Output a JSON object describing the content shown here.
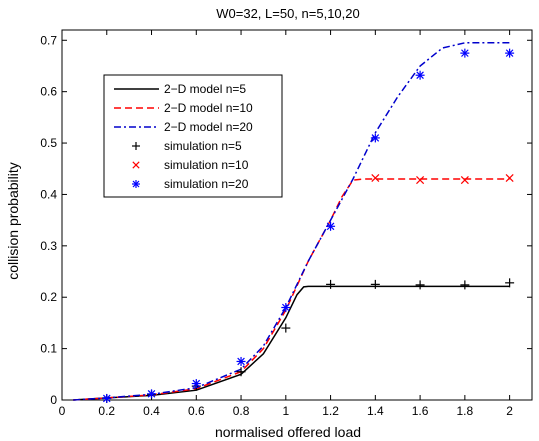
{
  "chart_data": {
    "type": "line",
    "title": "W0=32, L=50, n=5,10,20",
    "xlabel": "normalised offered load",
    "ylabel": "collision probability",
    "xlim": [
      0,
      2.1
    ],
    "ylim": [
      0,
      0.72
    ],
    "xticks": [
      0,
      0.2,
      0.4,
      0.6,
      0.8,
      1,
      1.2,
      1.4,
      1.6,
      1.8,
      2
    ],
    "xtick_labels": [
      "0",
      "0.2",
      "0.4",
      "0.6",
      "0.8",
      "1",
      "1.2",
      "1.4",
      "1.6",
      "1.8",
      "2"
    ],
    "yticks": [
      0,
      0.1,
      0.2,
      0.3,
      0.4,
      0.5,
      0.6,
      0.7
    ],
    "ytick_labels": [
      "0",
      "0.1",
      "0.2",
      "0.3",
      "0.4",
      "0.5",
      "0.6",
      "0.7"
    ],
    "grid": false,
    "legend_position": "top-left",
    "series": [
      {
        "name": "2−D model n=5",
        "kind": "line",
        "style": "solid",
        "color": "#000000",
        "x": [
          0.05,
          0.2,
          0.4,
          0.6,
          0.8,
          0.9,
          1.0,
          1.05,
          1.08,
          1.1,
          1.2,
          1.4,
          1.6,
          1.8,
          2.0
        ],
        "y": [
          0.0,
          0.004,
          0.009,
          0.019,
          0.05,
          0.09,
          0.16,
          0.205,
          0.22,
          0.221,
          0.221,
          0.221,
          0.221,
          0.221,
          0.221
        ]
      },
      {
        "name": "2−D model n=10",
        "kind": "line",
        "style": "dashed",
        "color": "#ff0000",
        "x": [
          0.05,
          0.2,
          0.4,
          0.6,
          0.8,
          0.9,
          1.0,
          1.1,
          1.2,
          1.25,
          1.3,
          1.35,
          1.4,
          1.6,
          1.8,
          2.0
        ],
        "y": [
          0.0,
          0.004,
          0.01,
          0.022,
          0.055,
          0.1,
          0.175,
          0.27,
          0.35,
          0.395,
          0.428,
          0.43,
          0.43,
          0.43,
          0.43,
          0.43
        ]
      },
      {
        "name": "2−D model n=20",
        "kind": "line",
        "style": "dashdot",
        "color": "#0000cc",
        "x": [
          0.05,
          0.2,
          0.4,
          0.6,
          0.8,
          0.9,
          1.0,
          1.1,
          1.2,
          1.3,
          1.4,
          1.5,
          1.6,
          1.7,
          1.8,
          1.9,
          2.0
        ],
        "y": [
          0.0,
          0.004,
          0.011,
          0.024,
          0.06,
          0.105,
          0.18,
          0.27,
          0.35,
          0.43,
          0.52,
          0.59,
          0.65,
          0.685,
          0.695,
          0.695,
          0.695
        ]
      },
      {
        "name": "simulation n=5",
        "kind": "marker",
        "marker": "plus",
        "color": "#000000",
        "x": [
          0.2,
          0.4,
          0.6,
          0.8,
          1.0,
          1.2,
          1.4,
          1.6,
          1.8,
          2.0
        ],
        "y": [
          0.003,
          0.011,
          0.027,
          0.055,
          0.14,
          0.225,
          0.225,
          0.224,
          0.224,
          0.228
        ]
      },
      {
        "name": "simulation n=10",
        "kind": "marker",
        "marker": "cross",
        "color": "#ff0000",
        "x": [
          1.4,
          1.6,
          1.8,
          2.0
        ],
        "y": [
          0.432,
          0.428,
          0.428,
          0.432
        ]
      },
      {
        "name": "simulation n=20",
        "kind": "marker",
        "marker": "star",
        "color": "#0000ff",
        "x": [
          0.2,
          0.4,
          0.6,
          0.8,
          1.0,
          1.2,
          1.4,
          1.6,
          1.8,
          2.0
        ],
        "y": [
          0.003,
          0.012,
          0.032,
          0.075,
          0.18,
          0.338,
          0.51,
          0.632,
          0.675,
          0.675
        ]
      }
    ]
  }
}
